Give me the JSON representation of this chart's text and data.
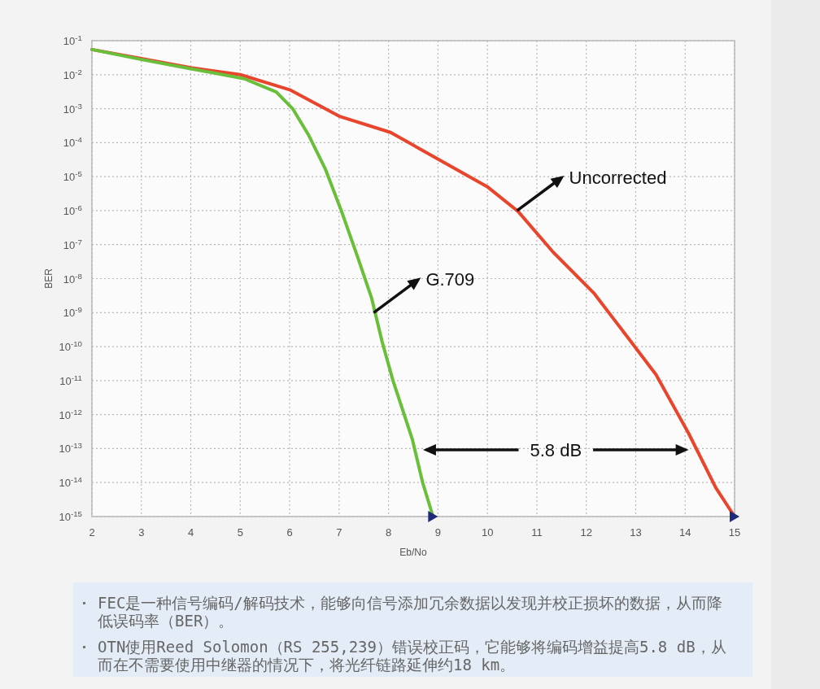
{
  "chart_data": {
    "type": "line",
    "xlabel": "Eb/No",
    "ylabel": "BER",
    "log": true,
    "grid": true,
    "xlim": [
      2,
      15
    ],
    "xticks": [
      2,
      3,
      4,
      5,
      6,
      7,
      8,
      9,
      10,
      11,
      12,
      13,
      14,
      15
    ],
    "ylim": [
      1e-15,
      0.1
    ],
    "yticks": [
      {
        "value": 0.1,
        "label": "10$^{-1}$"
      },
      {
        "value": 0.01,
        "label": "10$^{-2}$"
      },
      {
        "value": 0.001,
        "label": "10$^{-3}$"
      },
      {
        "value": 0.0001,
        "label": "10$^{-4}$"
      },
      {
        "value": 1e-05,
        "label": "10$^{-5}$"
      },
      {
        "value": 1e-06,
        "label": "10$^{-6}$"
      },
      {
        "value": 1e-07,
        "label": "10$^{-7}$"
      },
      {
        "value": 1e-08,
        "label": "10$^{-8}$"
      },
      {
        "value": 1e-09,
        "label": "10$^{-9}$"
      },
      {
        "value": 1e-10,
        "label": "10$^{-10}$"
      },
      {
        "value": 1e-11,
        "label": "10$^{-11}$"
      },
      {
        "value": 1e-12,
        "label": "10$^{-12}$"
      },
      {
        "value": 1e-13,
        "label": "10$^{-13}$"
      },
      {
        "value": 1e-14,
        "label": "10$^{-14}$"
      },
      {
        "value": 1e-15,
        "label": "10$^{-15}$"
      }
    ],
    "series": [
      {
        "color": "#e8452c",
        "line_style": "solid",
        "marker": "none",
        "x": [
          2,
          3,
          4,
          5,
          6,
          7,
          8.04,
          8.69,
          10.01,
          10.62,
          11.33,
          12.15,
          12.86,
          13.41,
          14.07,
          14.62,
          15
        ],
        "values": [
          0.055,
          0.03,
          0.016,
          0.01,
          0.0036,
          0.0006,
          0.0002,
          5.9e-05,
          4.9e-06,
          9.5e-07,
          6e-08,
          3.8e-09,
          1.7e-10,
          1.5e-11,
          2.8e-13,
          7e-15,
          1e-15
        ]
      },
      {
        "color": "#6abf3a",
        "line_style": "solid",
        "marker": "none",
        "x": [
          2,
          3,
          4,
          5.08,
          5.73,
          6.06,
          6.39,
          6.72,
          7.05,
          7.38,
          7.66,
          7.87,
          8.09,
          8.48,
          8.69,
          8.9
        ],
        "values": [
          0.055,
          0.028,
          0.015,
          0.0076,
          0.0031,
          0.001,
          0.00016,
          1.7e-05,
          9.5e-07,
          4.1e-08,
          2.6e-09,
          1.4e-10,
          1e-11,
          1.9e-13,
          1e-14,
          1e-15
        ]
      },
      {
        "type": "scatter",
        "color": "#1f2a78",
        "marker": "triangle",
        "x": [
          8.9,
          15
        ],
        "values": [
          1e-15,
          1e-15
        ]
      }
    ],
    "annotations": [
      {
        "text": "Uncorrected",
        "x": 10.6,
        "y": 1e-06
      },
      {
        "text": "G.709",
        "x": 7.7,
        "y": 1e-09
      },
      "5.8 dB",
      "FEC是一种信号编码/解码技术，能够向信号添加冗余数据以发现并校正损坏的数据，从而降低误码率（BER）。",
      "OTN使用Reed Solomon（RS 255,239）错误校正码，它能够将编码增益提高5.8 dB，从而在不需要使用中继器的情况下，将光纤链路延伸约18 km。"
    ]
  }
}
